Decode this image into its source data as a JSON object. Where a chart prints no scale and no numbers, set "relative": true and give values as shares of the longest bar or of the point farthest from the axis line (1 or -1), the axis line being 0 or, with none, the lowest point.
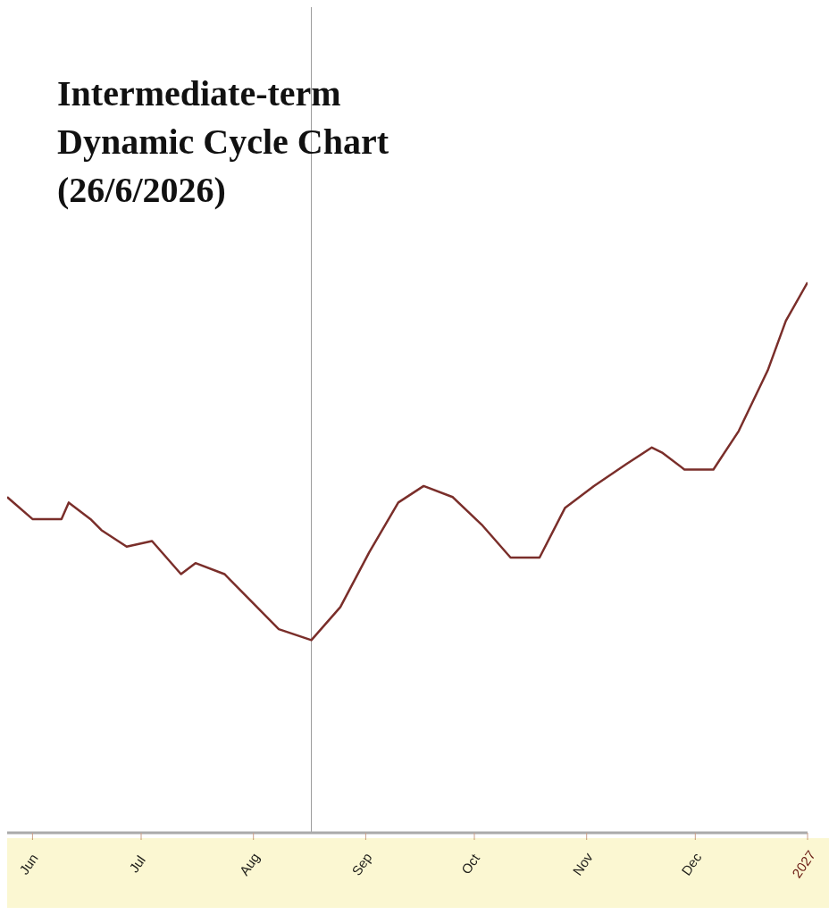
{
  "chart_data": {
    "type": "line",
    "title": "Intermediate-term\nDynamic Cycle Chart\n(26/6/2026)",
    "relative": true,
    "x": [
      "2026-05-25",
      "2026-06-01",
      "2026-06-09",
      "2026-06-11",
      "2026-06-17",
      "2026-06-20",
      "2026-06-27",
      "2026-07-04",
      "2026-07-12",
      "2026-07-16",
      "2026-07-24",
      "2026-07-30",
      "2026-08-08",
      "2026-08-17",
      "2026-08-25",
      "2026-09-02",
      "2026-09-10",
      "2026-09-17",
      "2026-09-25",
      "2026-10-03",
      "2026-10-11",
      "2026-10-19",
      "2026-10-26",
      "2026-11-03",
      "2026-11-12",
      "2026-11-19",
      "2026-11-22",
      "2026-11-28",
      "2026-12-06",
      "2026-12-13",
      "2026-12-21",
      "2026-12-26",
      "2027-01-01"
    ],
    "series": [
      {
        "color": "#7a2e2a",
        "values": [
          0.61,
          0.57,
          0.57,
          0.6,
          0.57,
          0.55,
          0.52,
          0.53,
          0.47,
          0.49,
          0.47,
          0.43,
          0.37,
          0.35,
          0.41,
          0.51,
          0.6,
          0.63,
          0.61,
          0.56,
          0.5,
          0.5,
          0.59,
          0.63,
          0.67,
          0.7,
          0.69,
          0.66,
          0.66,
          0.73,
          0.84,
          0.93,
          1
        ]
      }
    ],
    "xlim": [
      "2026-05-25",
      "2027-01-01"
    ],
    "xticks": [
      {
        "value": "2026-06-01",
        "label": "Jun"
      },
      {
        "value": "2026-07-01",
        "label": "Jul"
      },
      {
        "value": "2026-08-01",
        "label": "Aug"
      },
      {
        "value": "2026-09-01",
        "label": "Sep"
      },
      {
        "value": "2026-10-01",
        "label": "Oct"
      },
      {
        "value": "2026-11-01",
        "label": "Nov"
      },
      {
        "value": "2026-12-01",
        "label": "Dec"
      },
      {
        "value": "2027-01-01",
        "label": "2027"
      }
    ],
    "ref_lines": [
      {
        "axis": "x",
        "value": "2026-08-17",
        "color": "#999999"
      }
    ],
    "grid": false,
    "legend": false,
    "marker": "none",
    "line_style": "solid"
  }
}
